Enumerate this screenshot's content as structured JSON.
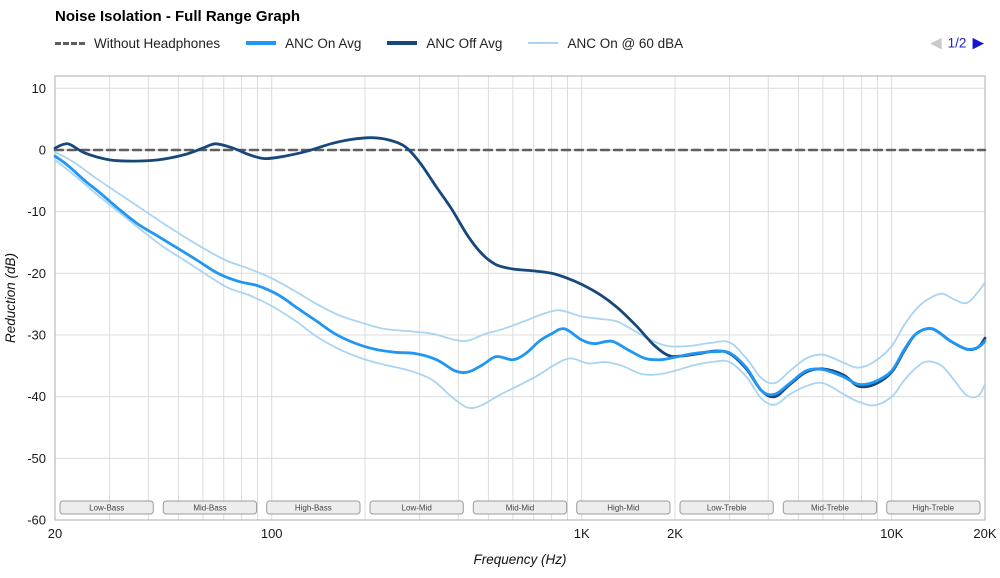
{
  "header": {
    "title": "Noise Isolation - Full Range Graph"
  },
  "pagination": {
    "prev_icon": "◀",
    "label": "1/2",
    "next_icon": "▶",
    "active_color": "#1414D2",
    "label_color": "#2121CC",
    "inactive_color": "#C9C9C9"
  },
  "legend": {
    "items": [
      {
        "id": "without-headphones",
        "label": "Without Headphones",
        "color": "#5F5F5F",
        "style": "dashed",
        "weight": 3
      },
      {
        "id": "anc-on-avg",
        "label": "ANC On Avg",
        "color": "#2196F3",
        "style": "solid",
        "weight": 4
      },
      {
        "id": "anc-off-avg",
        "label": "ANC Off Avg",
        "color": "#17487B",
        "style": "solid",
        "weight": 4
      },
      {
        "id": "anc-on-60dba",
        "label": "ANC On @ 60 dBA",
        "color": "#A9D4F2",
        "style": "solid",
        "weight": 2
      }
    ]
  },
  "chart_data": {
    "type": "line",
    "title": "Noise Isolation - Full Range Graph",
    "xlabel": "Frequency (Hz)",
    "ylabel": "Reduction (dB)",
    "x_scale": "log",
    "xlim": [
      20,
      20000
    ],
    "ylim": [
      -60,
      12
    ],
    "grid": true,
    "legend_position": "top",
    "y_ticks": [
      10,
      0,
      -10,
      -20,
      -30,
      -40,
      -50,
      -60
    ],
    "x_ticks": [
      {
        "f": 20,
        "label": "20"
      },
      {
        "f": 100,
        "label": "100"
      },
      {
        "f": 1000,
        "label": "1K"
      },
      {
        "f": 2000,
        "label": "2K"
      },
      {
        "f": 10000,
        "label": "10K"
      },
      {
        "f": 20000,
        "label": "20K"
      }
    ],
    "x_gridlines": [
      30,
      40,
      50,
      60,
      70,
      80,
      90,
      100,
      200,
      300,
      400,
      500,
      600,
      700,
      800,
      900,
      1000,
      2000,
      3000,
      4000,
      5000,
      6000,
      7000,
      8000,
      9000,
      10000
    ],
    "bands": [
      "Low-Bass",
      "Mid-Bass",
      "High-Bass",
      "Low-Mid",
      "Mid-Mid",
      "High-Mid",
      "Low-Treble",
      "Mid-Treble",
      "High-Treble"
    ],
    "colors": {
      "grid": "#DCDCDC",
      "border": "#ADADAD",
      "tick_text": "#1A1A1A",
      "band_fill": "#EDEDED",
      "band_border": "#9B9B9B",
      "band_text": "#444444",
      "axis_title": "#111111"
    },
    "series": [
      {
        "id": "anc-on-60dba-upper",
        "legend": "ANC On @ 60 dBA",
        "color": "#A9D4F2",
        "width": 1.8,
        "dash": null,
        "points": [
          [
            20,
            -0.3
          ],
          [
            23,
            -2
          ],
          [
            27,
            -4.5
          ],
          [
            32,
            -7
          ],
          [
            38,
            -9.5
          ],
          [
            45,
            -12
          ],
          [
            52,
            -14
          ],
          [
            62,
            -16.3
          ],
          [
            72,
            -18
          ],
          [
            85,
            -19.3
          ],
          [
            100,
            -20.8
          ],
          [
            120,
            -23
          ],
          [
            140,
            -25
          ],
          [
            165,
            -26.8
          ],
          [
            195,
            -28
          ],
          [
            230,
            -29
          ],
          [
            280,
            -29.4
          ],
          [
            330,
            -29.8
          ],
          [
            390,
            -30.8
          ],
          [
            430,
            -30.9
          ],
          [
            490,
            -29.8
          ],
          [
            560,
            -29
          ],
          [
            650,
            -27.8
          ],
          [
            750,
            -26.6
          ],
          [
            850,
            -26
          ],
          [
            1000,
            -27
          ],
          [
            1150,
            -27.4
          ],
          [
            1300,
            -27.8
          ],
          [
            1500,
            -29.5
          ],
          [
            1700,
            -31
          ],
          [
            1900,
            -31.8
          ],
          [
            2200,
            -31.8
          ],
          [
            2600,
            -31.3
          ],
          [
            3000,
            -31.2
          ],
          [
            3400,
            -33.8
          ],
          [
            3800,
            -37
          ],
          [
            4200,
            -37.8
          ],
          [
            4700,
            -35.8
          ],
          [
            5300,
            -33.8
          ],
          [
            6000,
            -33.2
          ],
          [
            7000,
            -34.5
          ],
          [
            7800,
            -35.3
          ],
          [
            8800,
            -34.3
          ],
          [
            10000,
            -31.8
          ],
          [
            11000,
            -28.3
          ],
          [
            12000,
            -25.8
          ],
          [
            13000,
            -24.3
          ],
          [
            14500,
            -23.3
          ],
          [
            16000,
            -24.3
          ],
          [
            17500,
            -24.8
          ],
          [
            19000,
            -23
          ],
          [
            20000,
            -21.5
          ]
        ]
      },
      {
        "id": "anc-on-60dba-lower",
        "legend": null,
        "color": "#A9D4F2",
        "width": 1.8,
        "dash": null,
        "points": [
          [
            20,
            -1.6
          ],
          [
            23,
            -4
          ],
          [
            27,
            -7
          ],
          [
            32,
            -10
          ],
          [
            38,
            -13
          ],
          [
            45,
            -15.8
          ],
          [
            52,
            -17.8
          ],
          [
            62,
            -20.3
          ],
          [
            72,
            -22.3
          ],
          [
            85,
            -23.6
          ],
          [
            100,
            -25.3
          ],
          [
            120,
            -27.8
          ],
          [
            140,
            -30.3
          ],
          [
            165,
            -32.3
          ],
          [
            195,
            -33.8
          ],
          [
            230,
            -34.8
          ],
          [
            280,
            -35.8
          ],
          [
            330,
            -37.3
          ],
          [
            380,
            -40
          ],
          [
            430,
            -41.8
          ],
          [
            480,
            -41.3
          ],
          [
            540,
            -39.8
          ],
          [
            620,
            -38.3
          ],
          [
            720,
            -36.6
          ],
          [
            820,
            -34.8
          ],
          [
            920,
            -33.8
          ],
          [
            1050,
            -34.6
          ],
          [
            1200,
            -34.4
          ],
          [
            1350,
            -35
          ],
          [
            1550,
            -36.3
          ],
          [
            1750,
            -36.4
          ],
          [
            2000,
            -35.8
          ],
          [
            2300,
            -34.9
          ],
          [
            2700,
            -34.3
          ],
          [
            3000,
            -34.4
          ],
          [
            3400,
            -36.8
          ],
          [
            3800,
            -40.3
          ],
          [
            4200,
            -41.3
          ],
          [
            4700,
            -39.6
          ],
          [
            5300,
            -38.3
          ],
          [
            6000,
            -37.8
          ],
          [
            7000,
            -39.6
          ],
          [
            7800,
            -40.8
          ],
          [
            8800,
            -41.4
          ],
          [
            10000,
            -40
          ],
          [
            11000,
            -37.3
          ],
          [
            12000,
            -35.3
          ],
          [
            13000,
            -34.3
          ],
          [
            14500,
            -35
          ],
          [
            16000,
            -37.5
          ],
          [
            17500,
            -39.8
          ],
          [
            19000,
            -39.9
          ],
          [
            20000,
            -38
          ]
        ]
      },
      {
        "id": "without-headphones",
        "legend": "Without Headphones",
        "color": "#5F5F5F",
        "width": 2.5,
        "dash": "8 5",
        "points": [
          [
            20,
            0
          ],
          [
            20000,
            0
          ]
        ]
      },
      {
        "id": "anc-off-avg",
        "legend": "ANC Off Avg",
        "color": "#17487B",
        "width": 2.8,
        "dash": null,
        "points": [
          [
            20,
            0.3
          ],
          [
            22,
            1
          ],
          [
            25,
            -0.5
          ],
          [
            30,
            -1.6
          ],
          [
            36,
            -1.8
          ],
          [
            43,
            -1.6
          ],
          [
            52,
            -0.8
          ],
          [
            60,
            0.3
          ],
          [
            66,
            1
          ],
          [
            75,
            0.3
          ],
          [
            85,
            -0.8
          ],
          [
            95,
            -1.4
          ],
          [
            110,
            -1
          ],
          [
            130,
            -0.2
          ],
          [
            155,
            1
          ],
          [
            180,
            1.7
          ],
          [
            210,
            2
          ],
          [
            240,
            1.6
          ],
          [
            270,
            0.5
          ],
          [
            300,
            -2
          ],
          [
            340,
            -6
          ],
          [
            380,
            -9.5
          ],
          [
            430,
            -14
          ],
          [
            480,
            -17
          ],
          [
            530,
            -18.6
          ],
          [
            600,
            -19.3
          ],
          [
            700,
            -19.6
          ],
          [
            800,
            -20
          ],
          [
            900,
            -20.8
          ],
          [
            1000,
            -21.8
          ],
          [
            1150,
            -23.5
          ],
          [
            1300,
            -25.5
          ],
          [
            1500,
            -28.5
          ],
          [
            1700,
            -31.5
          ],
          [
            1900,
            -33.3
          ],
          [
            2100,
            -33.4
          ],
          [
            2400,
            -33
          ],
          [
            2700,
            -32.6
          ],
          [
            3000,
            -33
          ],
          [
            3400,
            -35.5
          ],
          [
            3800,
            -39
          ],
          [
            4200,
            -40
          ],
          [
            4700,
            -38
          ],
          [
            5300,
            -36
          ],
          [
            6000,
            -35.5
          ],
          [
            7000,
            -36.5
          ],
          [
            7800,
            -38.3
          ],
          [
            8800,
            -38
          ],
          [
            10000,
            -36
          ],
          [
            11000,
            -32.5
          ],
          [
            12000,
            -29.8
          ],
          [
            13500,
            -29
          ],
          [
            15500,
            -31
          ],
          [
            17500,
            -32.3
          ],
          [
            19000,
            -32
          ],
          [
            20000,
            -30.5
          ]
        ]
      },
      {
        "id": "anc-on-avg",
        "legend": "ANC On Avg",
        "color": "#2196F3",
        "width": 2.8,
        "dash": null,
        "points": [
          [
            20,
            -1
          ],
          [
            22,
            -2.5
          ],
          [
            25,
            -5
          ],
          [
            28,
            -7
          ],
          [
            32,
            -9.5
          ],
          [
            37,
            -12
          ],
          [
            43,
            -14
          ],
          [
            50,
            -16
          ],
          [
            58,
            -18
          ],
          [
            67,
            -20
          ],
          [
            78,
            -21.3
          ],
          [
            90,
            -22
          ],
          [
            105,
            -23.5
          ],
          [
            120,
            -25.5
          ],
          [
            140,
            -27.8
          ],
          [
            160,
            -29.8
          ],
          [
            185,
            -31.3
          ],
          [
            215,
            -32.3
          ],
          [
            250,
            -32.8
          ],
          [
            290,
            -33
          ],
          [
            340,
            -34
          ],
          [
            390,
            -35.8
          ],
          [
            430,
            -36
          ],
          [
            480,
            -34.8
          ],
          [
            530,
            -33.5
          ],
          [
            600,
            -34
          ],
          [
            660,
            -33
          ],
          [
            730,
            -31
          ],
          [
            800,
            -29.8
          ],
          [
            880,
            -29
          ],
          [
            1000,
            -30.8
          ],
          [
            1100,
            -31.4
          ],
          [
            1250,
            -31
          ],
          [
            1400,
            -32.3
          ],
          [
            1600,
            -33.8
          ],
          [
            1800,
            -34
          ],
          [
            2000,
            -33.6
          ],
          [
            2300,
            -33
          ],
          [
            2700,
            -32.7
          ],
          [
            3000,
            -32.9
          ],
          [
            3400,
            -35.3
          ],
          [
            3800,
            -39
          ],
          [
            4200,
            -39.6
          ],
          [
            4700,
            -37.8
          ],
          [
            5300,
            -35.8
          ],
          [
            6000,
            -35.6
          ],
          [
            7000,
            -36.8
          ],
          [
            7800,
            -38
          ],
          [
            8800,
            -37.6
          ],
          [
            10000,
            -35.8
          ],
          [
            11000,
            -32.3
          ],
          [
            12000,
            -29.8
          ],
          [
            13500,
            -29
          ],
          [
            15500,
            -31
          ],
          [
            17500,
            -32.3
          ],
          [
            19000,
            -32
          ],
          [
            20000,
            -31
          ]
        ]
      }
    ]
  }
}
